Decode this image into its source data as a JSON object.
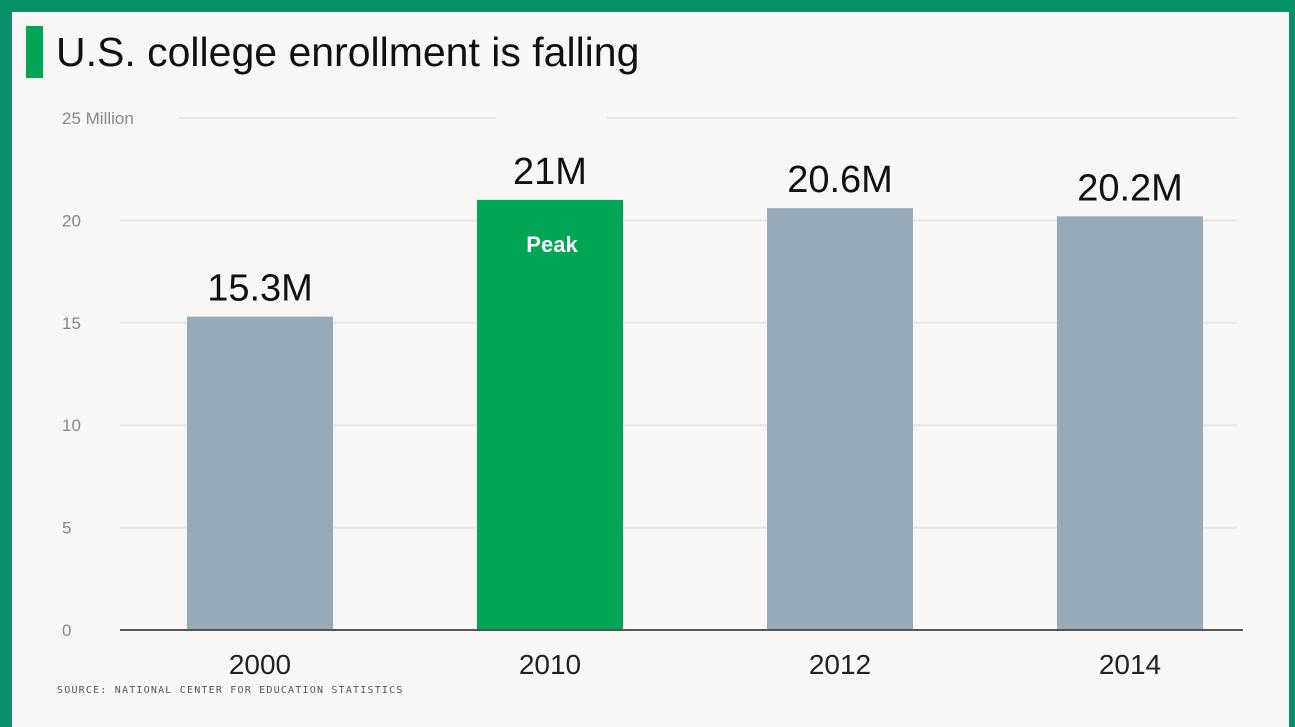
{
  "chart_data": {
    "type": "bar",
    "title": "U.S. college enrollment is falling",
    "source": "SOURCE: NATIONAL CENTER FOR EDUCATION STATISTICS",
    "categories": [
      "2000",
      "2010",
      "2012",
      "2014"
    ],
    "values": [
      15.3,
      21,
      20.6,
      20.2
    ],
    "value_labels": [
      "15.3M",
      "21M",
      "20.6M",
      "20.2M"
    ],
    "bar_colors": [
      "#98a9b8",
      "#00a656",
      "#98a9b8",
      "#98a9b8"
    ],
    "annotation": {
      "category": "2010",
      "text": "Peak",
      "color": "#ffffff"
    },
    "y_ticks": [
      0,
      5,
      10,
      15,
      20,
      25
    ],
    "y_tick_labels": [
      "0",
      "5",
      "10",
      "15",
      "20",
      "25 Million"
    ],
    "ylim": [
      0,
      25
    ],
    "grid": true,
    "xlabel": "",
    "ylabel": ""
  },
  "colors": {
    "accent": "#00a656",
    "bar": "#98a9b8",
    "frame": "#0a8f6b",
    "background": "#f8f7f6",
    "grid": "#e6e6e6",
    "axis": "#555555"
  }
}
